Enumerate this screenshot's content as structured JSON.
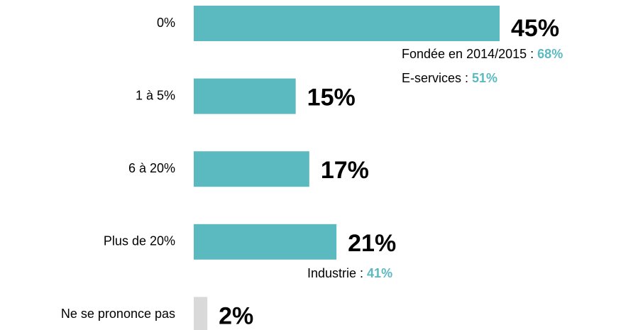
{
  "chart_data": {
    "type": "barh",
    "categories": [
      "0%",
      "1 à 5%",
      "6 à 20%",
      "Plus de 20%",
      "Ne se prononce pas"
    ],
    "values": [
      45,
      15,
      17,
      21,
      2
    ],
    "value_labels": [
      "45%",
      "15%",
      "17%",
      "21%",
      "2%"
    ],
    "colors": [
      "#5bb9c0",
      "#5bb9c0",
      "#5bb9c0",
      "#5bb9c0",
      "#d9d9d9"
    ],
    "annotations": [
      {
        "category": 0,
        "lines": [
          {
            "text": "Fondée en 2014/2015 :",
            "value": 68,
            "value_label": "68%"
          },
          {
            "text": "E-services :",
            "value": 51,
            "value_label": "51%"
          }
        ]
      },
      {
        "category": 3,
        "lines": [
          {
            "text": "Industrie :",
            "value": 41,
            "value_label": "41%"
          }
        ]
      }
    ],
    "annotation_color": "#5bb9c0"
  }
}
